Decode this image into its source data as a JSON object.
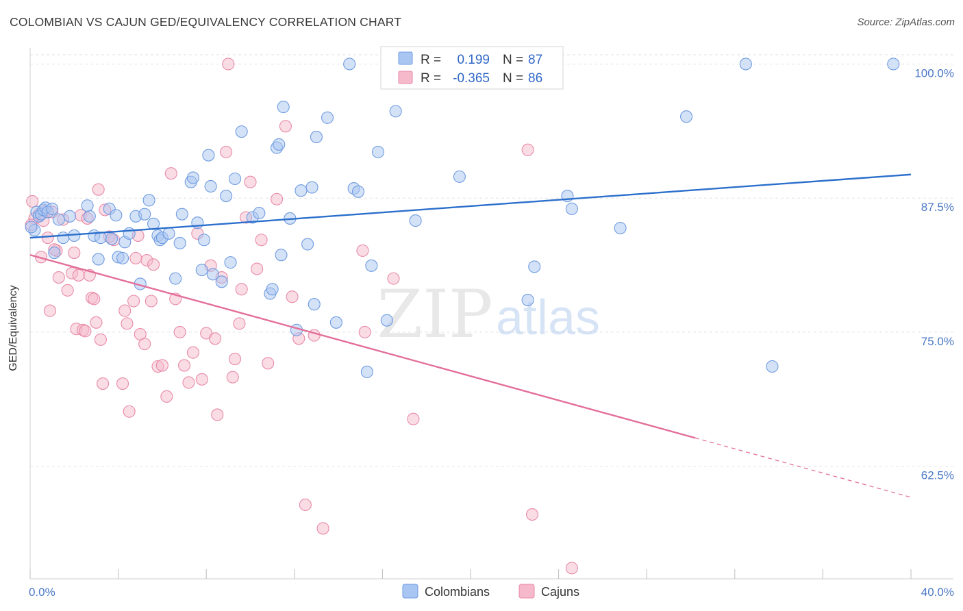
{
  "title": "COLOMBIAN VS CAJUN GED/EQUIVALENCY CORRELATION CHART",
  "source": "Source: ZipAtlas.com",
  "watermark": {
    "zip": "ZIP",
    "atlas": "atlas"
  },
  "colors": {
    "blue_fill": "#a9c6f2",
    "blue_stroke": "#6e9be0",
    "blue_line": "#2b6fcc",
    "pink_fill": "#f6b9cc",
    "pink_stroke": "#e88aa8",
    "pink_line": "#e36f9a",
    "axis_text": "#4a78c4",
    "grid": "#e2e2e2"
  },
  "legend": {
    "rows": [
      {
        "r_label": "R =",
        "r_value": "0.199",
        "n_label": "N =",
        "n_value": "87"
      },
      {
        "r_label": "R =",
        "r_value": "-0.365",
        "n_label": "N =",
        "n_value": "86"
      }
    ]
  },
  "bottom_legend": [
    "Colombians",
    "Cajuns"
  ],
  "chart_data": {
    "type": "scatter",
    "ylabel": "GED/Equivalency",
    "x_tick_labels": [
      "0.0%",
      "40.0%"
    ],
    "y_tick_labels": [
      "100.0%",
      "87.5%",
      "75.0%",
      "62.5%"
    ],
    "y_ticks": [
      100.0,
      87.5,
      75.0,
      62.5
    ],
    "xlim": [
      0,
      40
    ],
    "ylim": [
      52,
      101.5
    ],
    "series": [
      {
        "name": "Colombians",
        "color": "#a9c6f2",
        "trend": {
          "x": [
            0,
            40
          ],
          "y": [
            83.8,
            89.7
          ],
          "solid_until": 40
        },
        "points": [
          [
            0.2,
            84.5
          ],
          [
            0.3,
            86.2
          ],
          [
            0.4,
            85.8
          ],
          [
            0.5,
            86.0
          ],
          [
            0.6,
            86.4
          ],
          [
            0.7,
            86.6
          ],
          [
            0.8,
            86.2
          ],
          [
            1.0,
            86.5
          ],
          [
            1.1,
            82.4
          ],
          [
            1.3,
            85.5
          ],
          [
            1.5,
            83.8
          ],
          [
            1.8,
            85.8
          ],
          [
            2.0,
            84.0
          ],
          [
            2.7,
            85.8
          ],
          [
            2.6,
            86.8
          ],
          [
            2.9,
            84.0
          ],
          [
            3.1,
            81.8
          ],
          [
            3.2,
            83.8
          ],
          [
            3.6,
            86.5
          ],
          [
            3.7,
            83.7
          ],
          [
            3.9,
            85.9
          ],
          [
            4.0,
            82.0
          ],
          [
            4.2,
            81.9
          ],
          [
            4.3,
            83.4
          ],
          [
            4.5,
            84.2
          ],
          [
            4.8,
            85.8
          ],
          [
            5.0,
            79.5
          ],
          [
            5.2,
            86.0
          ],
          [
            5.4,
            87.3
          ],
          [
            5.6,
            85.1
          ],
          [
            5.8,
            84.0
          ],
          [
            5.9,
            83.6
          ],
          [
            6.0,
            83.8
          ],
          [
            6.3,
            84.2
          ],
          [
            6.6,
            80.0
          ],
          [
            6.8,
            83.3
          ],
          [
            6.9,
            86.0
          ],
          [
            7.3,
            89.0
          ],
          [
            7.4,
            89.4
          ],
          [
            7.6,
            85.2
          ],
          [
            7.8,
            80.8
          ],
          [
            7.9,
            83.6
          ],
          [
            8.1,
            91.5
          ],
          [
            8.2,
            88.6
          ],
          [
            8.3,
            80.4
          ],
          [
            8.7,
            79.7
          ],
          [
            8.9,
            87.7
          ],
          [
            9.1,
            81.5
          ],
          [
            9.3,
            89.3
          ],
          [
            9.6,
            93.7
          ],
          [
            10.1,
            85.7
          ],
          [
            10.4,
            86.1
          ],
          [
            10.9,
            78.6
          ],
          [
            11.0,
            79.0
          ],
          [
            11.2,
            92.2
          ],
          [
            11.3,
            92.5
          ],
          [
            11.4,
            82.2
          ],
          [
            11.5,
            96.0
          ],
          [
            11.8,
            85.6
          ],
          [
            12.1,
            75.2
          ],
          [
            12.3,
            88.2
          ],
          [
            12.6,
            83.2
          ],
          [
            12.8,
            88.5
          ],
          [
            12.9,
            77.6
          ],
          [
            13.0,
            93.2
          ],
          [
            13.5,
            95.0
          ],
          [
            13.9,
            75.9
          ],
          [
            14.5,
            100.0
          ],
          [
            14.7,
            88.4
          ],
          [
            14.9,
            88.1
          ],
          [
            15.3,
            71.3
          ],
          [
            15.5,
            81.2
          ],
          [
            15.8,
            91.8
          ],
          [
            16.2,
            76.1
          ],
          [
            16.6,
            95.6
          ],
          [
            17.5,
            85.4
          ],
          [
            19.5,
            89.5
          ],
          [
            22.6,
            78.0
          ],
          [
            22.9,
            81.1
          ],
          [
            24.4,
            87.7
          ],
          [
            24.6,
            86.5
          ],
          [
            26.8,
            84.7
          ],
          [
            29.8,
            95.1
          ],
          [
            32.5,
            100.0
          ],
          [
            33.7,
            71.8
          ],
          [
            39.2,
            100.0
          ],
          [
            0.05,
            84.8
          ]
        ]
      },
      {
        "name": "Cajuns",
        "color": "#f6b9cc",
        "trend": {
          "x": [
            0,
            40
          ],
          "y": [
            82.2,
            59.6
          ],
          "solid_until": 30.2
        },
        "points": [
          [
            0.1,
            87.2
          ],
          [
            0.2,
            85.6
          ],
          [
            0.4,
            86.0
          ],
          [
            0.5,
            82.0
          ],
          [
            0.6,
            85.4
          ],
          [
            0.7,
            86.3
          ],
          [
            0.8,
            83.8
          ],
          [
            0.9,
            77.0
          ],
          [
            1.0,
            86.2
          ],
          [
            1.2,
            82.6
          ],
          [
            1.3,
            80.1
          ],
          [
            1.5,
            85.5
          ],
          [
            1.7,
            78.9
          ],
          [
            1.9,
            80.5
          ],
          [
            2.0,
            82.4
          ],
          [
            2.1,
            75.3
          ],
          [
            2.2,
            80.3
          ],
          [
            2.3,
            85.9
          ],
          [
            2.4,
            75.2
          ],
          [
            2.5,
            75.1
          ],
          [
            2.6,
            85.6
          ],
          [
            2.7,
            80.3
          ],
          [
            2.8,
            78.2
          ],
          [
            2.9,
            78.1
          ],
          [
            3.0,
            75.9
          ],
          [
            3.1,
            88.3
          ],
          [
            3.2,
            74.3
          ],
          [
            3.3,
            70.2
          ],
          [
            3.4,
            86.4
          ],
          [
            3.6,
            83.9
          ],
          [
            3.8,
            83.6
          ],
          [
            4.2,
            70.2
          ],
          [
            4.3,
            77.0
          ],
          [
            4.4,
            75.8
          ],
          [
            4.5,
            67.6
          ],
          [
            4.7,
            77.9
          ],
          [
            4.8,
            81.9
          ],
          [
            5.0,
            74.8
          ],
          [
            5.2,
            73.9
          ],
          [
            5.3,
            81.7
          ],
          [
            5.5,
            77.9
          ],
          [
            5.6,
            81.3
          ],
          [
            5.8,
            71.8
          ],
          [
            6.0,
            71.9
          ],
          [
            6.2,
            69.0
          ],
          [
            6.4,
            89.8
          ],
          [
            6.6,
            78.1
          ],
          [
            6.8,
            75.0
          ],
          [
            7.0,
            71.9
          ],
          [
            7.2,
            70.3
          ],
          [
            7.4,
            73.1
          ],
          [
            7.6,
            84.2
          ],
          [
            7.8,
            70.6
          ],
          [
            8.0,
            74.9
          ],
          [
            8.2,
            81.2
          ],
          [
            8.4,
            74.4
          ],
          [
            8.5,
            67.3
          ],
          [
            8.7,
            80.1
          ],
          [
            8.9,
            91.8
          ],
          [
            9.0,
            100.0
          ],
          [
            9.2,
            70.8
          ],
          [
            9.3,
            72.5
          ],
          [
            9.5,
            75.8
          ],
          [
            9.8,
            85.7
          ],
          [
            10.0,
            89.0
          ],
          [
            10.3,
            80.9
          ],
          [
            10.5,
            83.6
          ],
          [
            10.8,
            72.1
          ],
          [
            11.2,
            87.4
          ],
          [
            11.6,
            94.2
          ],
          [
            11.9,
            78.3
          ],
          [
            12.2,
            74.4
          ],
          [
            12.5,
            58.9
          ],
          [
            12.9,
            74.7
          ],
          [
            13.3,
            56.7
          ],
          [
            15.1,
            82.6
          ],
          [
            15.2,
            75.0
          ],
          [
            16.5,
            80.0
          ],
          [
            17.4,
            66.9
          ],
          [
            22.6,
            92.0
          ],
          [
            22.8,
            58.0
          ],
          [
            24.6,
            53.0
          ],
          [
            0.05,
            85.0
          ],
          [
            1.1,
            82.7
          ],
          [
            4.9,
            84.0
          ],
          [
            9.6,
            79.0
          ]
        ]
      }
    ]
  }
}
